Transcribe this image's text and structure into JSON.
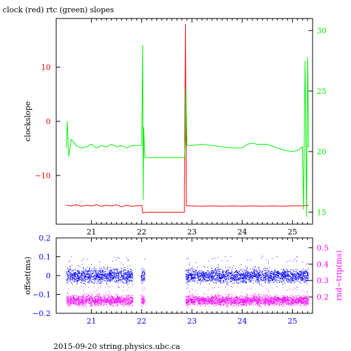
{
  "header": {
    "title": "clock (red) rtc (green) slopes"
  },
  "footer": {
    "text": "2015-09-20 string.physics.ubc.ca"
  },
  "colors": {
    "clock": "#ff0000",
    "rtc": "#00ee00",
    "offset": "#0000ff",
    "rndtrip": "#ff00ff",
    "frame": "#000000"
  },
  "chart_data": [
    {
      "type": "line",
      "ylabel": "clockslope",
      "y2label": "",
      "x_ticks": [
        "21",
        "22",
        "23",
        "24",
        "25"
      ],
      "y_ticks": [
        "10",
        "0",
        "−10"
      ],
      "y2_ticks": [
        "30",
        "25",
        "20",
        "15"
      ],
      "xlim": [
        20.3,
        25.4
      ],
      "ylim": [
        -19,
        19
      ],
      "y2lim": [
        14,
        31
      ],
      "series": [
        {
          "color": "red",
          "axis": "left",
          "points": [
            [
              20.5,
              -15.5
            ],
            [
              20.6,
              -15.6
            ],
            [
              20.7,
              -15.4
            ],
            [
              20.8,
              -15.7
            ],
            [
              20.9,
              -15.5
            ],
            [
              21.0,
              -15.6
            ],
            [
              21.1,
              -15.4
            ],
            [
              21.2,
              -15.7
            ],
            [
              21.3,
              -15.5
            ],
            [
              21.4,
              -15.6
            ],
            [
              21.5,
              -15.4
            ],
            [
              21.6,
              -15.8
            ],
            [
              21.7,
              -15.5
            ],
            [
              21.8,
              -15.7
            ],
            [
              21.9,
              -15.6
            ],
            [
              22.0,
              -15.5
            ],
            [
              22.02,
              -16.9
            ],
            [
              22.1,
              -16.8
            ],
            [
              22.3,
              -16.8
            ],
            [
              22.5,
              -16.8
            ],
            [
              22.7,
              -16.8
            ],
            [
              22.85,
              -16.8
            ],
            [
              22.87,
              18.0
            ],
            [
              22.89,
              -15.6
            ],
            [
              23.0,
              -15.6
            ],
            [
              23.2,
              -15.7
            ],
            [
              23.4,
              -15.6
            ],
            [
              23.6,
              -15.7
            ],
            [
              23.8,
              -15.6
            ],
            [
              24.0,
              -15.7
            ],
            [
              24.2,
              -15.6
            ],
            [
              24.4,
              -15.7
            ],
            [
              24.6,
              -15.6
            ],
            [
              24.8,
              -15.7
            ],
            [
              25.0,
              -15.6
            ],
            [
              25.2,
              -15.6
            ],
            [
              25.32,
              -15.5
            ]
          ]
        },
        {
          "color": "green",
          "axis": "right",
          "points": [
            [
              20.5,
              20.3
            ],
            [
              20.52,
              22.5
            ],
            [
              20.55,
              19.6
            ],
            [
              20.6,
              21.0
            ],
            [
              20.7,
              20.5
            ],
            [
              20.8,
              20.3
            ],
            [
              20.9,
              20.4
            ],
            [
              21.0,
              20.6
            ],
            [
              21.1,
              20.3
            ],
            [
              21.2,
              20.5
            ],
            [
              21.3,
              20.4
            ],
            [
              21.4,
              20.6
            ],
            [
              21.5,
              20.4
            ],
            [
              21.6,
              20.5
            ],
            [
              21.7,
              20.3
            ],
            [
              21.8,
              20.5
            ],
            [
              21.9,
              20.5
            ],
            [
              22.0,
              20.5
            ],
            [
              22.02,
              28.8
            ],
            [
              22.03,
              16.0
            ],
            [
              22.04,
              22.0
            ],
            [
              22.06,
              19.5
            ],
            [
              22.1,
              19.5
            ],
            [
              22.3,
              19.5
            ],
            [
              22.5,
              19.5
            ],
            [
              22.7,
              19.5
            ],
            [
              22.85,
              19.5
            ],
            [
              22.87,
              21.0
            ],
            [
              22.88,
              25.2
            ],
            [
              22.9,
              20.5
            ],
            [
              23.0,
              20.5
            ],
            [
              23.2,
              20.6
            ],
            [
              23.4,
              20.5
            ],
            [
              23.6,
              20.4
            ],
            [
              23.8,
              20.3
            ],
            [
              24.0,
              20.3
            ],
            [
              24.1,
              20.6
            ],
            [
              24.2,
              20.7
            ],
            [
              24.3,
              20.6
            ],
            [
              24.5,
              20.6
            ],
            [
              24.7,
              20.3
            ],
            [
              24.85,
              20.1
            ],
            [
              25.0,
              20.0
            ],
            [
              25.1,
              20.1
            ],
            [
              25.2,
              20.4
            ],
            [
              25.22,
              15.2
            ],
            [
              25.25,
              27.5
            ],
            [
              25.28,
              14.6
            ],
            [
              25.3,
              27.8
            ],
            [
              25.32,
              20.3
            ]
          ]
        }
      ]
    },
    {
      "type": "scatter",
      "ylabel": "offset(ms)",
      "y2label": "rnd−trip(ms)",
      "x_ticks": [
        "21",
        "22",
        "23",
        "24",
        "25"
      ],
      "y_ticks": [
        "0.2",
        "0.1",
        "0",
        "−0.1",
        "−0.2"
      ],
      "y2_ticks": [
        "0.5",
        "0.4",
        "0.3",
        "0.2"
      ],
      "xlim": [
        20.3,
        25.4
      ],
      "ylim": [
        -0.2,
        0.2
      ],
      "y2lim": [
        0.1,
        0.56
      ],
      "series": [
        {
          "color": "blue",
          "axis": "left",
          "segments": [
            [
              20.5,
              21.82
            ],
            [
              21.98,
              22.06
            ],
            [
              22.87,
              25.32
            ]
          ],
          "center": 0.0,
          "spread": 0.03
        },
        {
          "color": "magenta",
          "axis": "right",
          "segments": [
            [
              20.5,
              21.82
            ],
            [
              21.98,
              22.06
            ],
            [
              22.87,
              25.32
            ]
          ],
          "center": 0.18,
          "spread": 0.025
        }
      ]
    }
  ]
}
